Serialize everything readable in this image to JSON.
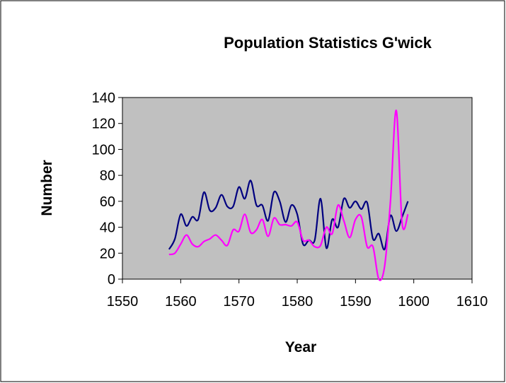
{
  "chart_data": {
    "type": "line",
    "title": "Population Statistics G'wick",
    "x_label": "Year",
    "y_label": "Number",
    "x": [
      1558,
      1559,
      1560,
      1561,
      1562,
      1563,
      1564,
      1565,
      1566,
      1567,
      1568,
      1569,
      1570,
      1571,
      1572,
      1573,
      1574,
      1575,
      1576,
      1577,
      1578,
      1579,
      1580,
      1581,
      1582,
      1583,
      1584,
      1585,
      1586,
      1587,
      1588,
      1589,
      1590,
      1591,
      1592,
      1593,
      1594,
      1595,
      1596,
      1597,
      1598,
      1599
    ],
    "series": [
      {
        "color": "#000080",
        "values": [
          23,
          31,
          50,
          41,
          48,
          46,
          67,
          53,
          55,
          65,
          56,
          56,
          71,
          62,
          76,
          57,
          57,
          45,
          67,
          60,
          44,
          57,
          50,
          27,
          30,
          30,
          62,
          24,
          46,
          40,
          62,
          55,
          60,
          54,
          59,
          31,
          35,
          23,
          49,
          37,
          48,
          60
        ]
      },
      {
        "color": "#ff00ff",
        "values": [
          19,
          20,
          27,
          34,
          27,
          25,
          29,
          31,
          34,
          30,
          26,
          38,
          37,
          50,
          36,
          38,
          46,
          33,
          47,
          42,
          42,
          41,
          44,
          30,
          30,
          25,
          26,
          40,
          35,
          57,
          45,
          32,
          46,
          48,
          25,
          25,
          0,
          10,
          60,
          130,
          43,
          50
        ]
      }
    ],
    "xlim": [
      1550,
      1610
    ],
    "xticks": [
      1550,
      1560,
      1570,
      1580,
      1590,
      1600,
      1610
    ],
    "ylim": [
      0,
      140
    ],
    "yticks": [
      0,
      20,
      40,
      60,
      80,
      100,
      120,
      140
    ],
    "smooth": true,
    "plot_background": "#c0c0c0"
  }
}
